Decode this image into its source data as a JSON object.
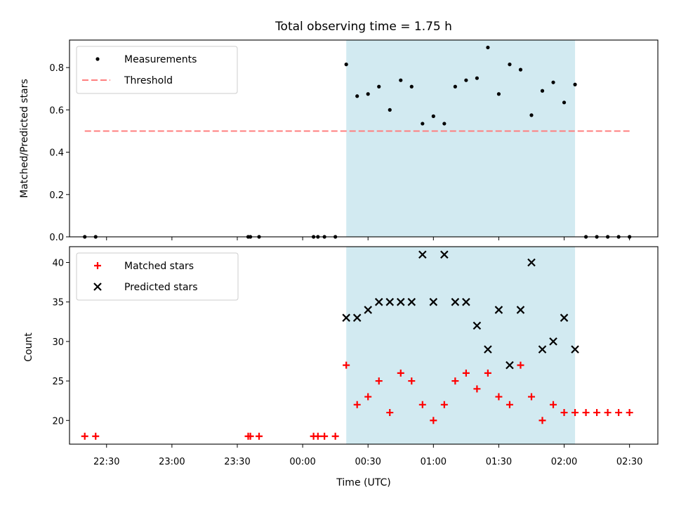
{
  "title": "Total observing time = 1.75 h",
  "colors": {
    "measurement": "#000000",
    "threshold": "#ff7f7f",
    "matched": "#ff0000",
    "predicted": "#000000",
    "observing_window": "#add8e6"
  },
  "chart_data": [
    {
      "type": "scatter",
      "panel": "top",
      "ylabel": "Matched/Predicted stars",
      "ylim": [
        0,
        0.93
      ],
      "yticks": [
        "0.0",
        "0.2",
        "0.4",
        "0.6",
        "0.8"
      ],
      "xlim": [
        "22:13",
        "02:43"
      ],
      "observing_window": [
        "00:20",
        "02:05"
      ],
      "legend": {
        "placement": "top-left",
        "entries": [
          "Measurements",
          "Threshold"
        ]
      },
      "series": [
        {
          "name": "Measurements",
          "points": [
            [
              "22:20",
              0.0
            ],
            [
              "22:25",
              0.0
            ],
            [
              "23:35",
              0.0
            ],
            [
              "23:36",
              0.0
            ],
            [
              "23:40",
              0.0
            ],
            [
              "00:05",
              0.0
            ],
            [
              "00:07",
              0.0
            ],
            [
              "00:10",
              0.0
            ],
            [
              "00:15",
              0.0
            ],
            [
              "00:20",
              0.815
            ],
            [
              "00:25",
              0.665
            ],
            [
              "00:30",
              0.675
            ],
            [
              "00:35",
              0.71
            ],
            [
              "00:40",
              0.6
            ],
            [
              "00:45",
              0.74
            ],
            [
              "00:50",
              0.71
            ],
            [
              "00:55",
              0.535
            ],
            [
              "01:00",
              0.57
            ],
            [
              "01:05",
              0.535
            ],
            [
              "01:10",
              0.71
            ],
            [
              "01:15",
              0.74
            ],
            [
              "01:20",
              0.75
            ],
            [
              "01:25",
              0.895
            ],
            [
              "01:30",
              0.675
            ],
            [
              "01:35",
              0.815
            ],
            [
              "01:40",
              0.79
            ],
            [
              "01:45",
              0.575
            ],
            [
              "01:50",
              0.69
            ],
            [
              "01:55",
              0.73
            ],
            [
              "02:00",
              0.635
            ],
            [
              "02:05",
              0.72
            ],
            [
              "02:10",
              0.0
            ],
            [
              "02:15",
              0.0
            ],
            [
              "02:20",
              0.0
            ],
            [
              "02:25",
              0.0
            ],
            [
              "02:30",
              0.0
            ]
          ]
        },
        {
          "name": "Threshold",
          "line": [
            [
              "22:20",
              0.5
            ],
            [
              "02:30",
              0.5
            ]
          ]
        }
      ]
    },
    {
      "type": "scatter",
      "panel": "bottom",
      "xlabel": "Time (UTC)",
      "ylabel": "Count",
      "ylim": [
        17,
        42
      ],
      "yticks": [
        "20",
        "25",
        "30",
        "35",
        "40"
      ],
      "xticks": [
        "22:30",
        "23:00",
        "23:30",
        "00:00",
        "00:30",
        "01:00",
        "01:30",
        "02:00",
        "02:30"
      ],
      "xlim": [
        "22:13",
        "02:43"
      ],
      "observing_window": [
        "00:20",
        "02:05"
      ],
      "legend": {
        "placement": "top-left",
        "entries": [
          "Matched stars",
          "Predicted stars"
        ]
      },
      "series": [
        {
          "name": "Matched stars",
          "points": [
            [
              "22:20",
              18
            ],
            [
              "22:25",
              18
            ],
            [
              "23:35",
              18
            ],
            [
              "23:36",
              18
            ],
            [
              "23:40",
              18
            ],
            [
              "00:05",
              18
            ],
            [
              "00:07",
              18
            ],
            [
              "00:10",
              18
            ],
            [
              "00:15",
              18
            ],
            [
              "00:20",
              27
            ],
            [
              "00:25",
              22
            ],
            [
              "00:30",
              23
            ],
            [
              "00:35",
              25
            ],
            [
              "00:40",
              21
            ],
            [
              "00:45",
              26
            ],
            [
              "00:50",
              25
            ],
            [
              "00:55",
              22
            ],
            [
              "01:00",
              20
            ],
            [
              "01:05",
              22
            ],
            [
              "01:10",
              25
            ],
            [
              "01:15",
              26
            ],
            [
              "01:20",
              24
            ],
            [
              "01:25",
              26
            ],
            [
              "01:30",
              23
            ],
            [
              "01:35",
              22
            ],
            [
              "01:40",
              27
            ],
            [
              "01:45",
              23
            ],
            [
              "01:50",
              20
            ],
            [
              "01:55",
              22
            ],
            [
              "02:00",
              21
            ],
            [
              "02:05",
              21
            ],
            [
              "02:10",
              21
            ],
            [
              "02:15",
              21
            ],
            [
              "02:20",
              21
            ],
            [
              "02:25",
              21
            ],
            [
              "02:30",
              21
            ]
          ]
        },
        {
          "name": "Predicted stars",
          "points": [
            [
              "00:20",
              33
            ],
            [
              "00:25",
              33
            ],
            [
              "00:30",
              34
            ],
            [
              "00:35",
              35
            ],
            [
              "00:40",
              35
            ],
            [
              "00:45",
              35
            ],
            [
              "00:50",
              35
            ],
            [
              "00:55",
              41
            ],
            [
              "01:00",
              35
            ],
            [
              "01:05",
              41
            ],
            [
              "01:10",
              35
            ],
            [
              "01:15",
              35
            ],
            [
              "01:20",
              32
            ],
            [
              "01:25",
              29
            ],
            [
              "01:30",
              34
            ],
            [
              "01:35",
              27
            ],
            [
              "01:40",
              34
            ],
            [
              "01:45",
              40
            ],
            [
              "01:50",
              29
            ],
            [
              "01:55",
              30
            ],
            [
              "02:00",
              33
            ],
            [
              "02:05",
              29
            ]
          ]
        }
      ]
    }
  ]
}
